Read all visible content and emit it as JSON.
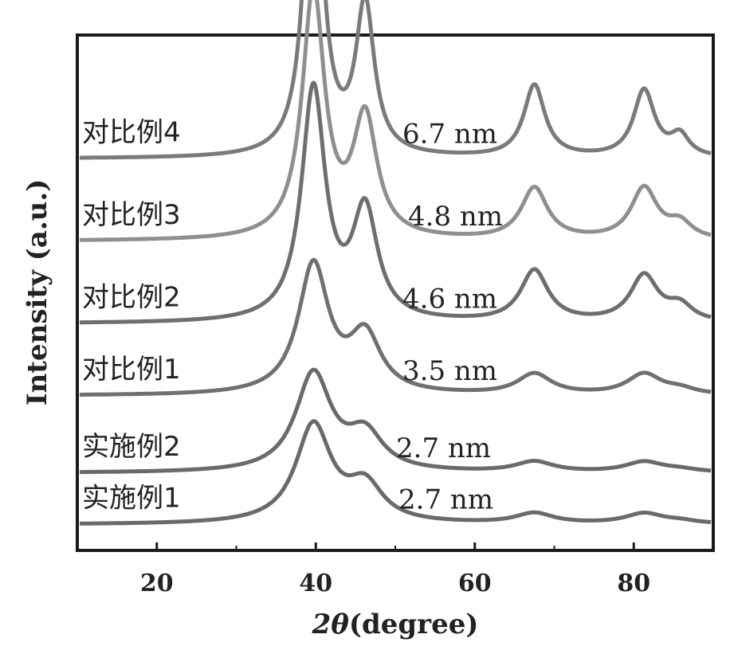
{
  "chart_data": {
    "type": "line",
    "title": "",
    "xlabel_prefix": "2θ",
    "xlabel_unit": "(degree)",
    "ylabel": "Intensity (a.u.)",
    "xlim": [
      10,
      90
    ],
    "xticks": [
      20,
      40,
      60,
      80
    ],
    "y_ticks_shown": false,
    "grid": false,
    "legend": "none",
    "peak_positions_deg": [
      39.7,
      46.2,
      67.5,
      81.3,
      85.8
    ],
    "series": [
      {
        "name": "对比例4",
        "crystallite_size": "6.7 nm",
        "baseline": 0.76,
        "color": "#7a7a7a",
        "peaks": [
          {
            "x": 39.7,
            "h": 0.69,
            "w": 1.3
          },
          {
            "x": 46.2,
            "h": 0.29,
            "w": 1.4
          },
          {
            "x": 67.5,
            "h": 0.14,
            "w": 1.6
          },
          {
            "x": 81.3,
            "h": 0.13,
            "w": 1.6
          },
          {
            "x": 85.8,
            "h": 0.04,
            "w": 1.4
          }
        ]
      },
      {
        "name": "对比例3",
        "crystallite_size": "4.8 nm",
        "baseline": 0.6,
        "color": "#8f8f8f",
        "peaks": [
          {
            "x": 39.7,
            "h": 0.48,
            "w": 1.7
          },
          {
            "x": 46.2,
            "h": 0.23,
            "w": 1.8
          },
          {
            "x": 67.5,
            "h": 0.1,
            "w": 2.0
          },
          {
            "x": 81.3,
            "h": 0.1,
            "w": 2.0
          },
          {
            "x": 85.8,
            "h": 0.03,
            "w": 1.8
          }
        ]
      },
      {
        "name": "对比例2",
        "crystallite_size": "4.6 nm",
        "baseline": 0.44,
        "color": "#6e6e6e",
        "peaks": [
          {
            "x": 39.7,
            "h": 0.45,
            "w": 1.8
          },
          {
            "x": 46.2,
            "h": 0.21,
            "w": 1.9
          },
          {
            "x": 67.5,
            "h": 0.1,
            "w": 2.1
          },
          {
            "x": 81.3,
            "h": 0.09,
            "w": 2.1
          },
          {
            "x": 85.8,
            "h": 0.03,
            "w": 1.9
          }
        ]
      },
      {
        "name": "对比例1",
        "crystallite_size": "3.5 nm",
        "baseline": 0.3,
        "color": "#707070",
        "peaks": [
          {
            "x": 39.7,
            "h": 0.25,
            "w": 2.3
          },
          {
            "x": 46.2,
            "h": 0.11,
            "w": 2.4
          },
          {
            "x": 67.5,
            "h": 0.04,
            "w": 2.6
          },
          {
            "x": 81.3,
            "h": 0.04,
            "w": 2.6
          },
          {
            "x": 85.8,
            "h": 0.01,
            "w": 2.4
          }
        ]
      },
      {
        "name": "实施例2",
        "crystallite_size": "2.7 nm",
        "baseline": 0.15,
        "color": "#6a6a6a",
        "peaks": [
          {
            "x": 39.7,
            "h": 0.19,
            "w": 2.7
          },
          {
            "x": 46.2,
            "h": 0.07,
            "w": 2.7
          },
          {
            "x": 67.5,
            "h": 0.02,
            "w": 2.9
          },
          {
            "x": 81.3,
            "h": 0.02,
            "w": 2.9
          },
          {
            "x": 85.8,
            "h": 0.005,
            "w": 2.7
          }
        ]
      },
      {
        "name": "实施例1",
        "crystallite_size": "2.7 nm",
        "baseline": 0.05,
        "color": "#6a6a6a",
        "peaks": [
          {
            "x": 39.7,
            "h": 0.19,
            "w": 2.7
          },
          {
            "x": 46.2,
            "h": 0.07,
            "w": 2.7
          },
          {
            "x": 67.5,
            "h": 0.02,
            "w": 2.9
          },
          {
            "x": 81.3,
            "h": 0.02,
            "w": 2.9
          },
          {
            "x": 85.8,
            "h": 0.005,
            "w": 2.7
          }
        ]
      }
    ]
  }
}
